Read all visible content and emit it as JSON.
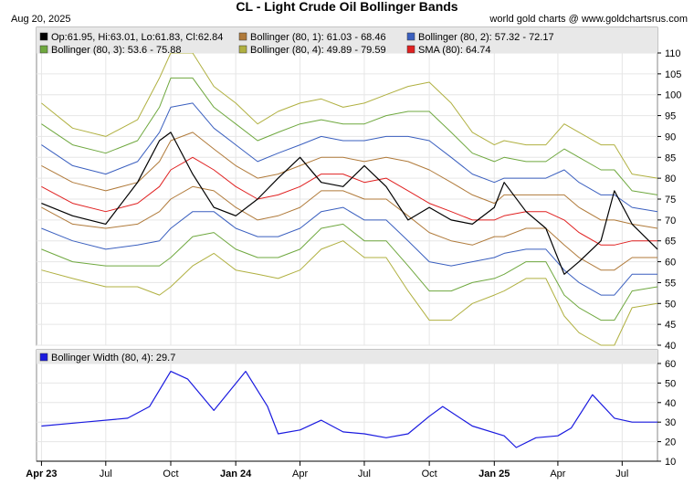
{
  "header": {
    "title": "CL  -  Light Crude Oil Bollinger Bands",
    "date": "Aug 20, 2025",
    "source": "world gold charts @ www.goldchartsrus.com"
  },
  "colors": {
    "price": "#000000",
    "band1": "#b07a3a",
    "band2": "#3a5fbf",
    "band3": "#6fa83f",
    "band4": "#b0b040",
    "sma": "#e02020",
    "width": "#1a1adf",
    "grid": "#e6e6e6",
    "legend_bg": "#e8e8e8"
  },
  "chart_data": [
    {
      "type": "line",
      "title": "CL  -  Light Crude Oil Bollinger Bands",
      "legend_placement": "top-left",
      "legend": [
        {
          "label": "Op:61.95, Hi:63.01, Lo:61.83, Cl:62.84",
          "color": "#000000"
        },
        {
          "label": "Bollinger (80, 1): 61.03 - 68.46",
          "color": "#b07a3a"
        },
        {
          "label": "Bollinger (80, 2): 57.32 - 72.17",
          "color": "#3a5fbf"
        },
        {
          "label": "Bollinger (80, 3): 53.6 - 75.88",
          "color": "#6fa83f"
        },
        {
          "label": "Bollinger (80, 4): 49.89 - 79.59",
          "color": "#b0b040"
        },
        {
          "label": "SMA (80): 64.74",
          "color": "#e02020"
        }
      ],
      "x": [
        "2023-04-01",
        "2023-05-15",
        "2023-07-01",
        "2023-08-15",
        "2023-09-15",
        "2023-10-01",
        "2023-11-01",
        "2023-12-01",
        "2024-01-01",
        "2024-02-01",
        "2024-03-01",
        "2024-04-01",
        "2024-05-01",
        "2024-06-01",
        "2024-07-01",
        "2024-08-01",
        "2024-09-01",
        "2024-10-01",
        "2024-11-01",
        "2024-12-01",
        "2025-01-01",
        "2025-01-15",
        "2025-02-15",
        "2025-03-15",
        "2025-04-10",
        "2025-05-01",
        "2025-06-01",
        "2025-06-20",
        "2025-07-15",
        "2025-08-20"
      ],
      "series": [
        {
          "name": "Price",
          "values": [
            74,
            71,
            69,
            79,
            89,
            91,
            81,
            73,
            71,
            75,
            80,
            85,
            79,
            78,
            83,
            78,
            70,
            73,
            70,
            69,
            73,
            79,
            72,
            68,
            57,
            60,
            65,
            77,
            69,
            63
          ]
        },
        {
          "name": "SMA (80)",
          "values": [
            78,
            74,
            72,
            74,
            78,
            82,
            85,
            82,
            78,
            75,
            76,
            78,
            81,
            81,
            79,
            80,
            77,
            74,
            72,
            70,
            70,
            71,
            72,
            72,
            70,
            67,
            64,
            64,
            65,
            65
          ]
        },
        {
          "name": "Bollinger upper (80, 1)",
          "values": [
            83,
            79,
            77,
            79,
            84,
            89,
            91,
            87,
            83,
            80,
            81,
            83,
            85,
            85,
            84,
            85,
            84,
            82,
            79,
            76,
            74,
            76,
            76,
            76,
            76,
            73,
            70,
            70,
            69,
            68
          ]
        },
        {
          "name": "Bollinger lower (80, 1)",
          "values": [
            73,
            69,
            68,
            69,
            72,
            75,
            78,
            77,
            73,
            70,
            71,
            73,
            77,
            77,
            75,
            75,
            71,
            67,
            65,
            64,
            66,
            66,
            68,
            68,
            64,
            61,
            58,
            58,
            61,
            61
          ]
        },
        {
          "name": "Bollinger upper (80, 2)",
          "values": [
            88,
            83,
            81,
            84,
            91,
            97,
            98,
            92,
            88,
            84,
            86,
            88,
            90,
            89,
            89,
            90,
            90,
            89,
            85,
            81,
            79,
            80,
            80,
            80,
            82,
            79,
            76,
            76,
            73,
            72
          ]
        },
        {
          "name": "Bollinger lower (80, 2)",
          "values": [
            68,
            65,
            63,
            64,
            65,
            68,
            72,
            72,
            68,
            66,
            66,
            68,
            72,
            73,
            70,
            70,
            65,
            60,
            59,
            60,
            61,
            62,
            63,
            63,
            58,
            55,
            52,
            52,
            57,
            57
          ]
        },
        {
          "name": "Bollinger upper (80, 3)",
          "values": [
            93,
            88,
            86,
            89,
            97,
            104,
            104,
            97,
            93,
            89,
            91,
            93,
            94,
            93,
            93,
            95,
            96,
            96,
            91,
            86,
            84,
            85,
            84,
            84,
            87,
            85,
            82,
            82,
            77,
            76
          ]
        },
        {
          "name": "Bollinger lower (80, 3)",
          "values": [
            63,
            60,
            59,
            59,
            59,
            61,
            66,
            67,
            63,
            61,
            61,
            63,
            68,
            69,
            65,
            65,
            59,
            53,
            53,
            55,
            56,
            57,
            60,
            60,
            52,
            49,
            46,
            46,
            53,
            54
          ]
        },
        {
          "name": "Bollinger upper (80, 4)",
          "values": [
            98,
            92,
            90,
            94,
            104,
            110,
            110,
            102,
            98,
            93,
            96,
            98,
            99,
            97,
            98,
            100,
            102,
            103,
            98,
            91,
            88,
            89,
            88,
            88,
            93,
            91,
            88,
            88,
            81,
            80
          ]
        },
        {
          "name": "Bollinger lower (80, 4)",
          "values": [
            58,
            56,
            54,
            54,
            52,
            54,
            59,
            62,
            58,
            57,
            56,
            58,
            63,
            65,
            61,
            61,
            53,
            46,
            46,
            50,
            52,
            53,
            56,
            56,
            47,
            43,
            40,
            40,
            49,
            50
          ]
        }
      ],
      "ylim": [
        40,
        110
      ],
      "yticks": [
        40,
        45,
        50,
        55,
        60,
        65,
        70,
        75,
        80,
        85,
        90,
        95,
        100,
        105,
        110
      ]
    },
    {
      "type": "line",
      "legend": [
        {
          "label": "Bollinger Width (80, 4): 29.7",
          "color": "#1a1adf"
        }
      ],
      "legend_placement": "top-left",
      "x": [
        "2023-04-01",
        "2023-06-01",
        "2023-08-01",
        "2023-09-01",
        "2023-10-01",
        "2023-10-25",
        "2023-12-01",
        "2024-01-15",
        "2024-02-15",
        "2024-03-01",
        "2024-04-01",
        "2024-05-01",
        "2024-06-01",
        "2024-07-01",
        "2024-08-01",
        "2024-09-01",
        "2024-10-01",
        "2024-10-20",
        "2024-12-01",
        "2025-01-15",
        "2025-02-01",
        "2025-03-01",
        "2025-04-01",
        "2025-04-20",
        "2025-05-20",
        "2025-06-20",
        "2025-07-15",
        "2025-08-20"
      ],
      "series": [
        {
          "name": "Bollinger Width (80, 4)",
          "values": [
            28,
            30,
            32,
            38,
            56,
            52,
            36,
            56,
            38,
            24,
            26,
            31,
            25,
            24,
            22,
            24,
            33,
            38,
            28,
            23,
            17,
            22,
            23,
            27,
            44,
            32,
            30,
            30
          ]
        }
      ],
      "ylim": [
        10,
        60
      ],
      "yticks": [
        10,
        20,
        30,
        40,
        50,
        60
      ]
    }
  ],
  "xaxis": {
    "ticks": [
      {
        "label": "Apr 23",
        "date": "2023-04-01",
        "bold": true
      },
      {
        "label": "Jul",
        "date": "2023-07-01",
        "bold": false
      },
      {
        "label": "Oct",
        "date": "2023-10-01",
        "bold": false
      },
      {
        "label": "Jan 24",
        "date": "2024-01-01",
        "bold": true
      },
      {
        "label": "Apr",
        "date": "2024-04-01",
        "bold": false
      },
      {
        "label": "Jul",
        "date": "2024-07-01",
        "bold": false
      },
      {
        "label": "Oct",
        "date": "2024-10-01",
        "bold": false
      },
      {
        "label": "Jan 25",
        "date": "2025-01-01",
        "bold": true
      },
      {
        "label": "Apr",
        "date": "2025-04-01",
        "bold": false
      },
      {
        "label": "Jul",
        "date": "2025-07-01",
        "bold": false
      }
    ],
    "start": "2023-03-25",
    "end": "2025-08-20"
  }
}
